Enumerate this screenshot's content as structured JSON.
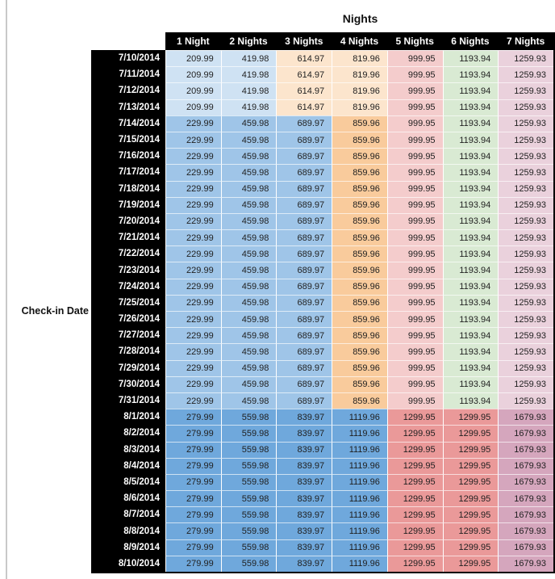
{
  "header": {
    "title": "Nights",
    "row_axis_label": "Check-in Date"
  },
  "palette": {
    "header_bg": "#000000",
    "header_text": "#ffffff",
    "date_bg": "#000000",
    "date_text": "#ffffff",
    "value_text": "#1f1f1f",
    "gridline": "#ffffff",
    "pane_divider": "#c9c9c9",
    "jul_early": [
      "#CFE2F3",
      "#CFE2F3",
      "#FCE5CD",
      "#FCE5CD",
      "#F4CCCC",
      "#D9EAD3",
      "#EAD1DC"
    ],
    "jul_mid": [
      "#9FC5E8",
      "#9FC5E8",
      "#9FC5E8",
      "#F9CB9C",
      "#F4CCCC",
      "#D9EAD3",
      "#EAD1DC"
    ],
    "aug": [
      "#6FA8DC",
      "#6FA8DC",
      "#6FA8DC",
      "#6FA8DC",
      "#EA9999",
      "#EA9999",
      "#D5A6BD"
    ]
  },
  "chart_data": {
    "type": "table",
    "title": "Nights",
    "row_axis_label": "Check-in Date",
    "columns": [
      "1 Night",
      "2 Nights",
      "3 Nights",
      "4 Nights",
      "5 Nights",
      "6 Nights",
      "7 Nights"
    ],
    "rows": [
      {
        "date": "7/10/2014",
        "style": "jul_early",
        "values": [
          209.99,
          419.98,
          614.97,
          819.96,
          999.95,
          1193.94,
          1259.93
        ]
      },
      {
        "date": "7/11/2014",
        "style": "jul_early",
        "values": [
          209.99,
          419.98,
          614.97,
          819.96,
          999.95,
          1193.94,
          1259.93
        ]
      },
      {
        "date": "7/12/2014",
        "style": "jul_early",
        "values": [
          209.99,
          419.98,
          614.97,
          819.96,
          999.95,
          1193.94,
          1259.93
        ]
      },
      {
        "date": "7/13/2014",
        "style": "jul_early",
        "values": [
          209.99,
          419.98,
          614.97,
          819.96,
          999.95,
          1193.94,
          1259.93
        ]
      },
      {
        "date": "7/14/2014",
        "style": "jul_mid",
        "values": [
          229.99,
          459.98,
          689.97,
          859.96,
          999.95,
          1193.94,
          1259.93
        ]
      },
      {
        "date": "7/15/2014",
        "style": "jul_mid",
        "values": [
          229.99,
          459.98,
          689.97,
          859.96,
          999.95,
          1193.94,
          1259.93
        ]
      },
      {
        "date": "7/16/2014",
        "style": "jul_mid",
        "values": [
          229.99,
          459.98,
          689.97,
          859.96,
          999.95,
          1193.94,
          1259.93
        ]
      },
      {
        "date": "7/17/2014",
        "style": "jul_mid",
        "values": [
          229.99,
          459.98,
          689.97,
          859.96,
          999.95,
          1193.94,
          1259.93
        ]
      },
      {
        "date": "7/18/2014",
        "style": "jul_mid",
        "values": [
          229.99,
          459.98,
          689.97,
          859.96,
          999.95,
          1193.94,
          1259.93
        ]
      },
      {
        "date": "7/19/2014",
        "style": "jul_mid",
        "values": [
          229.99,
          459.98,
          689.97,
          859.96,
          999.95,
          1193.94,
          1259.93
        ]
      },
      {
        "date": "7/20/2014",
        "style": "jul_mid",
        "values": [
          229.99,
          459.98,
          689.97,
          859.96,
          999.95,
          1193.94,
          1259.93
        ]
      },
      {
        "date": "7/21/2014",
        "style": "jul_mid",
        "values": [
          229.99,
          459.98,
          689.97,
          859.96,
          999.95,
          1193.94,
          1259.93
        ]
      },
      {
        "date": "7/22/2014",
        "style": "jul_mid",
        "values": [
          229.99,
          459.98,
          689.97,
          859.96,
          999.95,
          1193.94,
          1259.93
        ]
      },
      {
        "date": "7/23/2014",
        "style": "jul_mid",
        "values": [
          229.99,
          459.98,
          689.97,
          859.96,
          999.95,
          1193.94,
          1259.93
        ]
      },
      {
        "date": "7/24/2014",
        "style": "jul_mid",
        "values": [
          229.99,
          459.98,
          689.97,
          859.96,
          999.95,
          1193.94,
          1259.93
        ]
      },
      {
        "date": "7/25/2014",
        "style": "jul_mid",
        "values": [
          229.99,
          459.98,
          689.97,
          859.96,
          999.95,
          1193.94,
          1259.93
        ]
      },
      {
        "date": "7/26/2014",
        "style": "jul_mid",
        "values": [
          229.99,
          459.98,
          689.97,
          859.96,
          999.95,
          1193.94,
          1259.93
        ]
      },
      {
        "date": "7/27/2014",
        "style": "jul_mid",
        "values": [
          229.99,
          459.98,
          689.97,
          859.96,
          999.95,
          1193.94,
          1259.93
        ]
      },
      {
        "date": "7/28/2014",
        "style": "jul_mid",
        "values": [
          229.99,
          459.98,
          689.97,
          859.96,
          999.95,
          1193.94,
          1259.93
        ]
      },
      {
        "date": "7/29/2014",
        "style": "jul_mid",
        "values": [
          229.99,
          459.98,
          689.97,
          859.96,
          999.95,
          1193.94,
          1259.93
        ]
      },
      {
        "date": "7/30/2014",
        "style": "jul_mid",
        "values": [
          229.99,
          459.98,
          689.97,
          859.96,
          999.95,
          1193.94,
          1259.93
        ]
      },
      {
        "date": "7/31/2014",
        "style": "jul_mid",
        "values": [
          229.99,
          459.98,
          689.97,
          859.96,
          999.95,
          1193.94,
          1259.93
        ]
      },
      {
        "date": "8/1/2014",
        "style": "aug",
        "values": [
          279.99,
          559.98,
          839.97,
          1119.96,
          1299.95,
          1299.95,
          1679.93
        ]
      },
      {
        "date": "8/2/2014",
        "style": "aug",
        "values": [
          279.99,
          559.98,
          839.97,
          1119.96,
          1299.95,
          1299.95,
          1679.93
        ]
      },
      {
        "date": "8/3/2014",
        "style": "aug",
        "values": [
          279.99,
          559.98,
          839.97,
          1119.96,
          1299.95,
          1299.95,
          1679.93
        ]
      },
      {
        "date": "8/4/2014",
        "style": "aug",
        "values": [
          279.99,
          559.98,
          839.97,
          1119.96,
          1299.95,
          1299.95,
          1679.93
        ]
      },
      {
        "date": "8/5/2014",
        "style": "aug",
        "values": [
          279.99,
          559.98,
          839.97,
          1119.96,
          1299.95,
          1299.95,
          1679.93
        ]
      },
      {
        "date": "8/6/2014",
        "style": "aug",
        "values": [
          279.99,
          559.98,
          839.97,
          1119.96,
          1299.95,
          1299.95,
          1679.93
        ]
      },
      {
        "date": "8/7/2014",
        "style": "aug",
        "values": [
          279.99,
          559.98,
          839.97,
          1119.96,
          1299.95,
          1299.95,
          1679.93
        ]
      },
      {
        "date": "8/8/2014",
        "style": "aug",
        "values": [
          279.99,
          559.98,
          839.97,
          1119.96,
          1299.95,
          1299.95,
          1679.93
        ]
      },
      {
        "date": "8/9/2014",
        "style": "aug",
        "values": [
          279.99,
          559.98,
          839.97,
          1119.96,
          1299.95,
          1299.95,
          1679.93
        ]
      },
      {
        "date": "8/10/2014",
        "style": "aug",
        "values": [
          279.99,
          559.98,
          839.97,
          1119.96,
          1299.95,
          1299.95,
          1679.93
        ]
      }
    ]
  }
}
